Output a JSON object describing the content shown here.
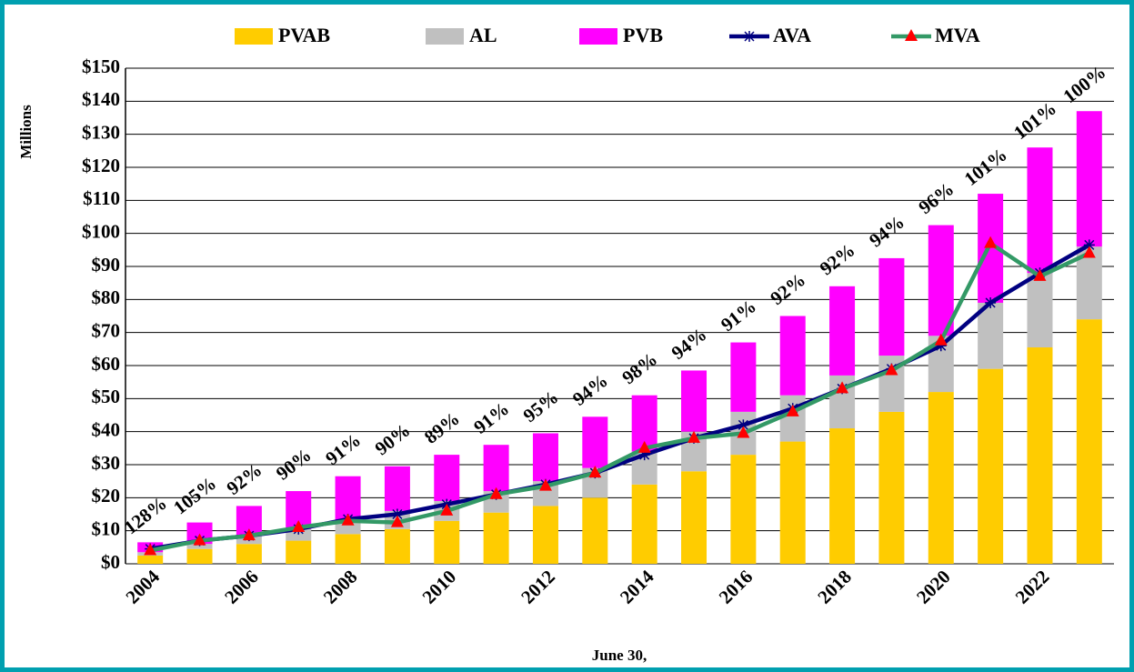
{
  "chart_data": {
    "type": "bar",
    "stacked": true,
    "x_label": "June 30,",
    "y_label": "Millions",
    "categories": [
      "2004",
      null,
      "2006",
      null,
      "2008",
      null,
      "2010",
      null,
      "2012",
      null,
      "2014",
      null,
      "2016",
      null,
      "2018",
      null,
      "2020",
      null,
      "2022",
      null
    ],
    "series": [
      {
        "name": "PVAB",
        "type": "bar",
        "color": "#FFCC00",
        "values": [
          2.5,
          4.5,
          6,
          7,
          9,
          10.5,
          13,
          15.5,
          17.5,
          20,
          24,
          28,
          33,
          37,
          41,
          46,
          52,
          59,
          65.5,
          74
        ]
      },
      {
        "name": "AL",
        "type": "bar",
        "color": "#C0C0C0",
        "values": [
          1,
          1.5,
          2.5,
          3.5,
          4,
          5.5,
          6,
          6.5,
          7.5,
          9,
          10,
          12,
          13,
          14,
          16,
          17,
          17,
          20,
          22.5,
          22
        ]
      },
      {
        "name": "PVB",
        "type": "bar",
        "color": "#FF00FF",
        "values": [
          3,
          6.5,
          9,
          11.5,
          13.5,
          13.5,
          14,
          14,
          14.5,
          15.5,
          17,
          18.5,
          21,
          24,
          27,
          29.5,
          33.5,
          33,
          38,
          41
        ]
      },
      {
        "name": "AVA",
        "type": "line",
        "color": "#000080",
        "marker": "asterisk",
        "marker_color": "#000080",
        "values": [
          4.5,
          7,
          8.5,
          10.5,
          13.5,
          15,
          18,
          21,
          24,
          27.5,
          33,
          38,
          42,
          47,
          53,
          59,
          66,
          79,
          88,
          96.5
        ]
      },
      {
        "name": "MVA",
        "type": "line",
        "color": "#339966",
        "marker": "triangle",
        "marker_color": "#FF0000",
        "values": [
          4,
          7,
          8.5,
          11,
          13,
          12.5,
          16,
          21,
          23.5,
          27.5,
          35,
          38,
          39.5,
          46,
          53,
          58.5,
          67.5,
          97,
          87,
          94
        ]
      }
    ],
    "annotations": [
      "128%",
      "105%",
      "92%",
      "90%",
      "91%",
      "90%",
      "89%",
      "91%",
      "95%",
      "94%",
      "98%",
      "94%",
      "91%",
      "92%",
      "92%",
      "94%",
      "96%",
      "101%",
      "101%",
      "100%"
    ],
    "ylim": [
      0,
      150
    ],
    "yticks": [
      {
        "value": 0,
        "label": "$0"
      },
      {
        "value": 10,
        "label": "$10"
      },
      {
        "value": 20,
        "label": "$20"
      },
      {
        "value": 30,
        "label": "$30"
      },
      {
        "value": 40,
        "label": "$40"
      },
      {
        "value": 50,
        "label": "$50"
      },
      {
        "value": 60,
        "label": "$60"
      },
      {
        "value": 70,
        "label": "$70"
      },
      {
        "value": 80,
        "label": "$80"
      },
      {
        "value": 90,
        "label": "$90"
      },
      {
        "value": 100,
        "label": "$100"
      },
      {
        "value": 110,
        "label": "$110"
      },
      {
        "value": 120,
        "label": "$120"
      },
      {
        "value": 130,
        "label": "$130"
      },
      {
        "value": 140,
        "label": "$140"
      },
      {
        "value": 150,
        "label": "$150"
      }
    ],
    "grid": true,
    "legend": "top"
  }
}
